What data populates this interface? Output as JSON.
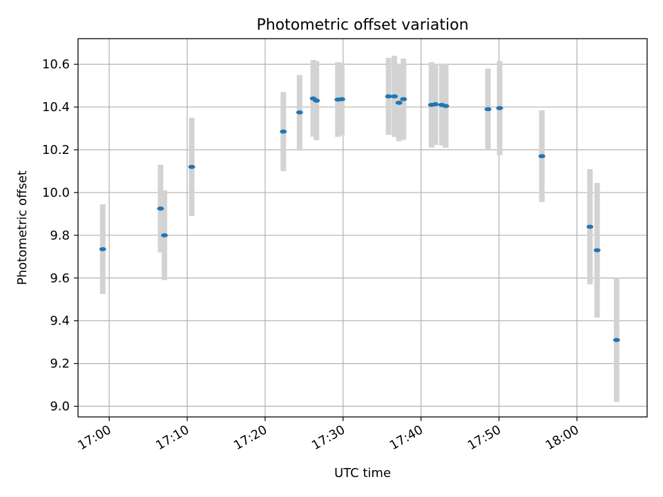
{
  "chart_data": {
    "type": "scatter",
    "title": "Photometric offset variation",
    "xlabel": "UTC time",
    "ylabel": "Photometric offset",
    "grid": true,
    "xlim": [
      "16:56",
      "18:09"
    ],
    "ylim": [
      8.95,
      10.72
    ],
    "x_ticks": [
      "17:00",
      "17:10",
      "17:20",
      "17:30",
      "17:40",
      "17:50",
      "18:00"
    ],
    "y_ticks": [
      "9.0",
      "9.2",
      "9.4",
      "9.6",
      "9.8",
      "10.0",
      "10.2",
      "10.4",
      "10.6"
    ],
    "point_color": "#1f77b4",
    "errorbar_color": "#d3d3d3",
    "series": [
      {
        "points": [
          {
            "x": "16:59:10",
            "y": 9.735,
            "err": 0.21
          },
          {
            "x": "17:06:35",
            "y": 9.925,
            "err": 0.205
          },
          {
            "x": "17:07:05",
            "y": 9.8,
            "err": 0.21
          },
          {
            "x": "17:10:35",
            "y": 10.12,
            "err": 0.23
          },
          {
            "x": "17:22:20",
            "y": 10.285,
            "err": 0.185
          },
          {
            "x": "17:24:25",
            "y": 10.375,
            "err": 0.175
          },
          {
            "x": "17:26:10",
            "y": 10.44,
            "err": 0.18
          },
          {
            "x": "17:26:35",
            "y": 10.43,
            "err": 0.185
          },
          {
            "x": "17:29:20",
            "y": 10.435,
            "err": 0.175
          },
          {
            "x": "17:29:50",
            "y": 10.437,
            "err": 0.17
          },
          {
            "x": "17:35:50",
            "y": 10.45,
            "err": 0.18
          },
          {
            "x": "17:36:35",
            "y": 10.45,
            "err": 0.19
          },
          {
            "x": "17:37:10",
            "y": 10.42,
            "err": 0.18
          },
          {
            "x": "17:37:45",
            "y": 10.437,
            "err": 0.19
          },
          {
            "x": "17:41:20",
            "y": 10.41,
            "err": 0.2
          },
          {
            "x": "17:41:50",
            "y": 10.413,
            "err": 0.19
          },
          {
            "x": "17:42:40",
            "y": 10.41,
            "err": 0.19
          },
          {
            "x": "17:43:10",
            "y": 10.405,
            "err": 0.195
          },
          {
            "x": "17:48:35",
            "y": 10.39,
            "err": 0.19
          },
          {
            "x": "17:50:05",
            "y": 10.395,
            "err": 0.22
          },
          {
            "x": "17:55:30",
            "y": 10.17,
            "err": 0.215
          },
          {
            "x": "18:01:40",
            "y": 9.84,
            "err": 0.27
          },
          {
            "x": "18:02:35",
            "y": 9.73,
            "err": 0.315
          },
          {
            "x": "18:05:05",
            "y": 9.31,
            "err": 0.29
          }
        ]
      }
    ]
  }
}
